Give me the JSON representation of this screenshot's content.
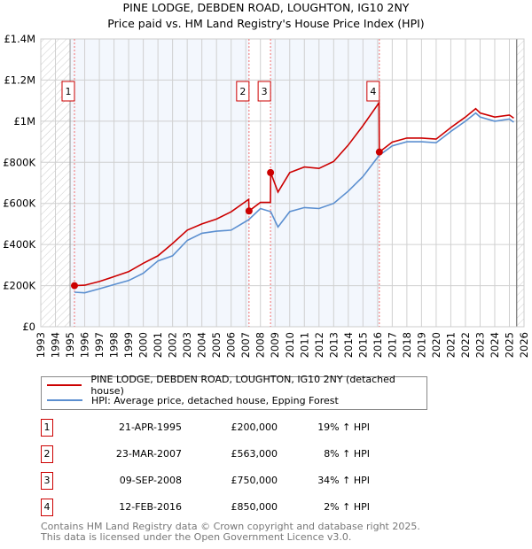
{
  "title": "PINE LODGE, DEBDEN ROAD, LOUGHTON, IG10 2NY",
  "subtitle": "Price paid vs. HM Land Registry's House Price Index (HPI)",
  "chart_data": {
    "type": "line",
    "xlim": [
      1993,
      2026
    ],
    "ylim": [
      0,
      1400000
    ],
    "x_ticks": [
      "1993",
      "1994",
      "1995",
      "1996",
      "1997",
      "1998",
      "1999",
      "2000",
      "2001",
      "2002",
      "2003",
      "2004",
      "2005",
      "2006",
      "2007",
      "2008",
      "2009",
      "2010",
      "2011",
      "2012",
      "2013",
      "2014",
      "2015",
      "2016",
      "2017",
      "2018",
      "2019",
      "2020",
      "2021",
      "2022",
      "2023",
      "2024",
      "2025",
      "2026"
    ],
    "y_ticks": [
      {
        "v": 0,
        "label": "£0"
      },
      {
        "v": 200000,
        "label": "£200K"
      },
      {
        "v": 400000,
        "label": "£400K"
      },
      {
        "v": 600000,
        "label": "£600K"
      },
      {
        "v": 800000,
        "label": "£800K"
      },
      {
        "v": 1000000,
        "label": "£1M"
      },
      {
        "v": 1200000,
        "label": "£1.2M"
      },
      {
        "v": 1400000,
        "label": "£1.4M"
      }
    ],
    "grid": true,
    "data_start": 1995.0,
    "data_end": 2025.5,
    "series": [
      {
        "name": "PINE LODGE, DEBDEN ROAD, LOUGHTON, IG10 2NY (detached house)",
        "color": "#cc0000",
        "x": [
          1995.3,
          1996,
          1997,
          1998,
          1999,
          2000,
          2001,
          2002,
          2003,
          2004,
          2005,
          2006,
          2007.2,
          2007.22,
          2008,
          2008.68,
          2008.7,
          2009.2,
          2010,
          2011,
          2012,
          2013,
          2014,
          2015,
          2016.1,
          2016.12,
          2017,
          2018,
          2019,
          2020,
          2021,
          2022,
          2022.7,
          2023,
          2024,
          2025,
          2025.3
        ],
        "y": [
          200000,
          202000,
          220000,
          244000,
          268000,
          309000,
          345000,
          405000,
          470000,
          500000,
          524000,
          559000,
          620000,
          563000,
          605000,
          605000,
          750000,
          655000,
          750000,
          777000,
          770000,
          804000,
          884000,
          978000,
          1090000,
          850000,
          898000,
          918000,
          918000,
          913000,
          969000,
          1020000,
          1061000,
          1040000,
          1020000,
          1030000,
          1015000
        ]
      },
      {
        "name": "HPI: Average price, detached house, Epping Forest",
        "color": "#5b8fd0",
        "x": [
          1995.3,
          1996,
          1997,
          1998,
          1999,
          2000,
          2001,
          2002,
          2003,
          2004,
          2005,
          2006,
          2007.2,
          2008,
          2008.7,
          2009.2,
          2010,
          2011,
          2012,
          2013,
          2014,
          2015,
          2016.1,
          2017,
          2018,
          2019,
          2020,
          2021,
          2022,
          2022.7,
          2023,
          2024,
          2025,
          2025.3
        ],
        "y": [
          168000,
          165000,
          185000,
          205000,
          225000,
          260000,
          320000,
          345000,
          420000,
          455000,
          465000,
          470000,
          521000,
          575000,
          560000,
          485000,
          560000,
          580000,
          575000,
          600000,
          660000,
          730000,
          833000,
          880000,
          900000,
          900000,
          895000,
          950000,
          1000000,
          1040000,
          1020000,
          1000000,
          1010000,
          995000
        ]
      }
    ],
    "sales": [
      {
        "n": "1",
        "x": 1995.3,
        "date": "21-APR-1995",
        "price": 200000,
        "price_label": "£200,000",
        "hpi": "19% ↑ HPI"
      },
      {
        "n": "2",
        "x": 2007.22,
        "date": "23-MAR-2007",
        "price": 563000,
        "price_label": "£563,000",
        "hpi": "8% ↑ HPI"
      },
      {
        "n": "3",
        "x": 2008.69,
        "date": "09-SEP-2008",
        "price": 750000,
        "price_label": "£750,000",
        "hpi": "34% ↑ HPI"
      },
      {
        "n": "4",
        "x": 2016.12,
        "date": "12-FEB-2016",
        "price": 850000,
        "price_label": "£850,000",
        "hpi": "2% ↑ HPI"
      }
    ]
  },
  "legend": {
    "property": "PINE LODGE, DEBDEN ROAD, LOUGHTON, IG10 2NY (detached house)",
    "hpi": "HPI: Average price, detached house, Epping Forest"
  },
  "footer": {
    "line1": "Contains HM Land Registry data © Crown copyright and database right 2025.",
    "line2": "This data is licensed under the Open Government Licence v3.0."
  }
}
